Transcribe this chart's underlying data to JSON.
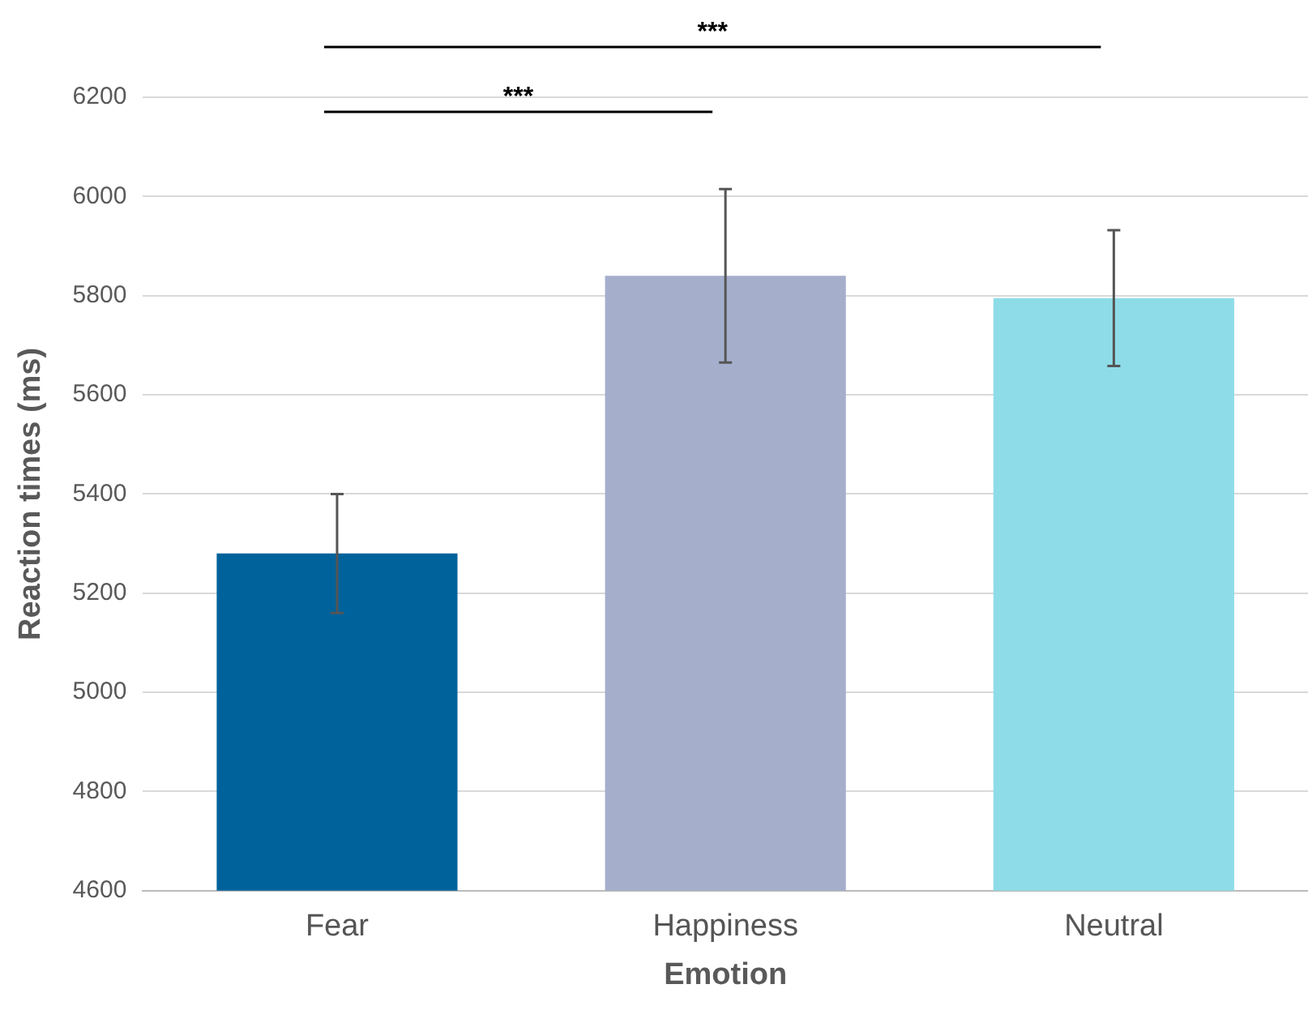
{
  "chart_data": {
    "type": "bar",
    "xlabel": "Emotion",
    "ylabel": "Reaction times (ms)",
    "categories": [
      "Fear",
      "Happiness",
      "Neutral"
    ],
    "values": [
      5280,
      5840,
      5795
    ],
    "errors": [
      120,
      175,
      137
    ],
    "colors": [
      "#00629b",
      "#a5aecb",
      "#8ddce8"
    ],
    "ylim": [
      4600,
      6200
    ],
    "yticks": [
      4600,
      4800,
      5000,
      5200,
      5400,
      5600,
      5800,
      6000,
      6200
    ],
    "grid": "y",
    "legend": false,
    "annotations": [
      "***",
      "***"
    ]
  }
}
